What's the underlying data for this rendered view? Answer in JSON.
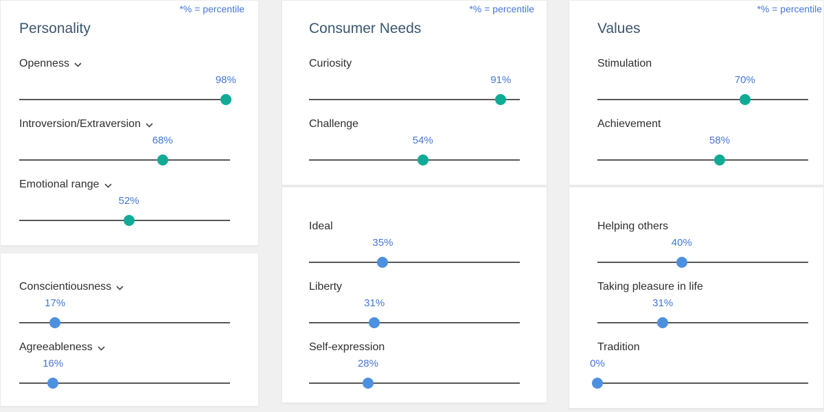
{
  "percentile_note": "*% = percentile",
  "colors": {
    "teal": "#10ab96",
    "blue": "#4d90e0",
    "percent": "#4576d4",
    "heading": "#3b566e",
    "track": "#575757",
    "background": "#f0f0f1",
    "card": "#ffffff"
  },
  "columns": [
    {
      "title": "Personality",
      "sections": [
        {
          "traits": [
            {
              "label": "Openness",
              "percent": "98%",
              "value": 98,
              "tone": "teal",
              "expandable": true
            },
            {
              "label": "Introversion/Extraversion",
              "percent": "68%",
              "value": 68,
              "tone": "teal",
              "expandable": true
            },
            {
              "label": "Emotional range",
              "percent": "52%",
              "value": 52,
              "tone": "teal",
              "expandable": true
            }
          ]
        },
        {
          "traits": [
            {
              "label": "Conscientiousness",
              "percent": "17%",
              "value": 17,
              "tone": "blue",
              "expandable": true
            },
            {
              "label": "Agreeableness",
              "percent": "16%",
              "value": 16,
              "tone": "blue",
              "expandable": true
            }
          ]
        }
      ]
    },
    {
      "title": "Consumer Needs",
      "sections": [
        {
          "traits": [
            {
              "label": "Curiosity",
              "percent": "91%",
              "value": 91,
              "tone": "teal",
              "expandable": false
            },
            {
              "label": "Challenge",
              "percent": "54%",
              "value": 54,
              "tone": "teal",
              "expandable": false
            }
          ]
        },
        {
          "traits": [
            {
              "label": "Ideal",
              "percent": "35%",
              "value": 35,
              "tone": "blue",
              "expandable": false
            },
            {
              "label": "Liberty",
              "percent": "31%",
              "value": 31,
              "tone": "blue",
              "expandable": false
            },
            {
              "label": "Self-expression",
              "percent": "28%",
              "value": 28,
              "tone": "blue",
              "expandable": false
            }
          ]
        }
      ]
    },
    {
      "title": "Values",
      "sections": [
        {
          "traits": [
            {
              "label": "Stimulation",
              "percent": "70%",
              "value": 70,
              "tone": "teal",
              "expandable": false
            },
            {
              "label": "Achievement",
              "percent": "58%",
              "value": 58,
              "tone": "teal",
              "expandable": false
            }
          ]
        },
        {
          "traits": [
            {
              "label": "Helping others",
              "percent": "40%",
              "value": 40,
              "tone": "blue",
              "expandable": false
            },
            {
              "label": "Taking pleasure in life",
              "percent": "31%",
              "value": 31,
              "tone": "blue",
              "expandable": false
            },
            {
              "label": "Tradition",
              "percent": "0%",
              "value": 0,
              "tone": "blue",
              "expandable": false
            }
          ]
        }
      ]
    }
  ]
}
